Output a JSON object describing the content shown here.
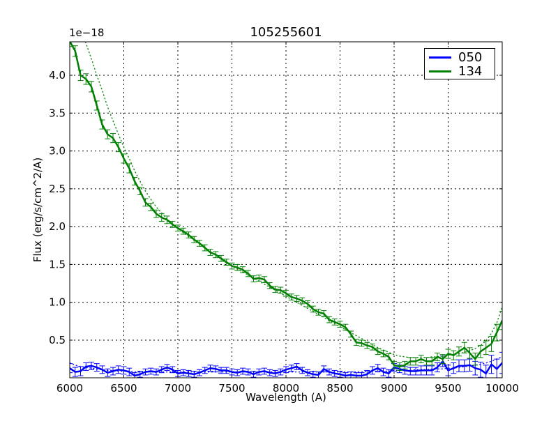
{
  "chart_data": {
    "type": "line",
    "title": "105255601",
    "xlabel": "Wavelength (A)",
    "ylabel": "Flux (erg/s/cm^2/A)",
    "y_scale_label": "1e−18",
    "xlim": [
      6000,
      10000
    ],
    "ylim": [
      0.0,
      4.45
    ],
    "x_ticks": [
      6000,
      6500,
      7000,
      7500,
      8000,
      8500,
      9000,
      9500,
      10000
    ],
    "y_ticks": [
      0.5,
      1.0,
      1.5,
      2.0,
      2.5,
      3.0,
      3.5,
      4.0
    ],
    "y_tick_labels": [
      "0.5",
      "1.0",
      "1.5",
      "2.0",
      "2.5",
      "3.0",
      "3.5",
      "4.0"
    ],
    "grid": true,
    "legend_position": "upper right",
    "x_start": 6000,
    "x_step": 50,
    "series": [
      {
        "name": "050",
        "color": "#0000ff",
        "values": [
          0.13,
          0.08,
          0.09,
          0.15,
          0.16,
          0.14,
          0.11,
          0.07,
          0.09,
          0.11,
          0.1,
          0.08,
          0.03,
          0.05,
          0.08,
          0.09,
          0.08,
          0.11,
          0.14,
          0.11,
          0.06,
          0.07,
          0.06,
          0.05,
          0.07,
          0.1,
          0.13,
          0.12,
          0.1,
          0.1,
          0.08,
          0.07,
          0.09,
          0.08,
          0.05,
          0.08,
          0.09,
          0.07,
          0.06,
          0.08,
          0.11,
          0.13,
          0.15,
          0.1,
          0.07,
          0.05,
          0.04,
          0.12,
          0.08,
          0.06,
          0.05,
          0.03,
          0.04,
          0.03,
          0.03,
          0.05,
          0.1,
          0.13,
          0.08,
          0.06,
          0.14,
          0.12,
          0.1,
          0.09,
          0.09,
          0.1,
          0.1,
          0.1,
          0.14,
          0.22,
          0.1,
          0.13,
          0.16,
          0.16,
          0.17,
          0.13,
          0.11,
          0.06,
          0.18,
          0.12,
          0.2
        ],
        "errors": [
          0.06,
          0.06,
          0.06,
          0.05,
          0.05,
          0.05,
          0.05,
          0.05,
          0.05,
          0.05,
          0.05,
          0.05,
          0.04,
          0.04,
          0.04,
          0.04,
          0.04,
          0.04,
          0.04,
          0.04,
          0.04,
          0.04,
          0.04,
          0.04,
          0.04,
          0.04,
          0.04,
          0.04,
          0.04,
          0.04,
          0.04,
          0.04,
          0.04,
          0.04,
          0.04,
          0.04,
          0.04,
          0.04,
          0.04,
          0.04,
          0.04,
          0.04,
          0.04,
          0.04,
          0.04,
          0.04,
          0.04,
          0.04,
          0.04,
          0.04,
          0.04,
          0.04,
          0.04,
          0.04,
          0.04,
          0.05,
          0.05,
          0.05,
          0.05,
          0.05,
          0.05,
          0.05,
          0.05,
          0.05,
          0.05,
          0.06,
          0.06,
          0.06,
          0.06,
          0.07,
          0.07,
          0.07,
          0.08,
          0.08,
          0.08,
          0.09,
          0.1,
          0.11,
          0.12,
          0.13,
          0.14
        ],
        "model": [
          0.2,
          0.17,
          0.15,
          0.14,
          0.13,
          0.12,
          0.11,
          0.1,
          0.1,
          0.09,
          0.09,
          0.09,
          0.08,
          0.08,
          0.08,
          0.08,
          0.08,
          0.08,
          0.08,
          0.08,
          0.08,
          0.08,
          0.08,
          0.08,
          0.08,
          0.08,
          0.08,
          0.08,
          0.08,
          0.08,
          0.08,
          0.08,
          0.08,
          0.08,
          0.08,
          0.08,
          0.08,
          0.08,
          0.08,
          0.08,
          0.08,
          0.08,
          0.08,
          0.08,
          0.08,
          0.08,
          0.08,
          0.08,
          0.08,
          0.08,
          0.08,
          0.08,
          0.08,
          0.08,
          0.08,
          0.09,
          0.09,
          0.09,
          0.09,
          0.09,
          0.1,
          0.1,
          0.1,
          0.1,
          0.11,
          0.11,
          0.11,
          0.12,
          0.12,
          0.12,
          0.13,
          0.13,
          0.14,
          0.15,
          0.16,
          0.17,
          0.18,
          0.2,
          0.22,
          0.25,
          0.28
        ]
      },
      {
        "name": "134",
        "color": "#008000",
        "values": [
          4.45,
          4.32,
          4.0,
          3.95,
          3.85,
          3.6,
          3.35,
          3.22,
          3.17,
          3.05,
          2.9,
          2.77,
          2.6,
          2.47,
          2.32,
          2.26,
          2.17,
          2.12,
          2.09,
          2.03,
          1.98,
          1.94,
          1.89,
          1.83,
          1.78,
          1.72,
          1.66,
          1.63,
          1.58,
          1.53,
          1.48,
          1.46,
          1.43,
          1.38,
          1.31,
          1.32,
          1.3,
          1.22,
          1.17,
          1.16,
          1.12,
          1.07,
          1.05,
          1.02,
          0.98,
          0.91,
          0.87,
          0.85,
          0.77,
          0.74,
          0.71,
          0.67,
          0.58,
          0.47,
          0.46,
          0.43,
          0.41,
          0.35,
          0.32,
          0.28,
          0.17,
          0.15,
          0.17,
          0.22,
          0.22,
          0.25,
          0.22,
          0.22,
          0.28,
          0.25,
          0.32,
          0.3,
          0.35,
          0.4,
          0.33,
          0.25,
          0.35,
          0.4,
          0.45,
          0.6,
          0.76
        ],
        "errors": [
          0.07,
          0.07,
          0.07,
          0.07,
          0.07,
          0.06,
          0.06,
          0.06,
          0.06,
          0.06,
          0.06,
          0.06,
          0.05,
          0.05,
          0.05,
          0.05,
          0.05,
          0.05,
          0.05,
          0.04,
          0.04,
          0.04,
          0.04,
          0.04,
          0.04,
          0.04,
          0.04,
          0.04,
          0.04,
          0.04,
          0.04,
          0.04,
          0.04,
          0.04,
          0.04,
          0.04,
          0.04,
          0.04,
          0.04,
          0.04,
          0.04,
          0.04,
          0.04,
          0.04,
          0.04,
          0.04,
          0.04,
          0.04,
          0.04,
          0.04,
          0.04,
          0.04,
          0.04,
          0.04,
          0.04,
          0.04,
          0.04,
          0.04,
          0.04,
          0.04,
          0.05,
          0.05,
          0.05,
          0.05,
          0.05,
          0.05,
          0.05,
          0.05,
          0.05,
          0.06,
          0.06,
          0.06,
          0.06,
          0.07,
          0.07,
          0.08,
          0.08,
          0.09,
          0.1,
          0.11,
          0.12
        ],
        "model": [
          4.95,
          4.8,
          4.62,
          4.42,
          4.22,
          4.0,
          3.8,
          3.58,
          3.4,
          3.22,
          3.05,
          2.9,
          2.74,
          2.6,
          2.47,
          2.36,
          2.26,
          2.18,
          2.1,
          2.04,
          1.98,
          1.92,
          1.87,
          1.82,
          1.77,
          1.72,
          1.67,
          1.62,
          1.57,
          1.52,
          1.48,
          1.44,
          1.4,
          1.36,
          1.32,
          1.28,
          1.24,
          1.2,
          1.16,
          1.12,
          1.08,
          1.04,
          1.0,
          0.96,
          0.92,
          0.88,
          0.84,
          0.8,
          0.76,
          0.72,
          0.68,
          0.64,
          0.6,
          0.56,
          0.52,
          0.48,
          0.44,
          0.4,
          0.37,
          0.34,
          0.31,
          0.29,
          0.28,
          0.27,
          0.27,
          0.27,
          0.27,
          0.28,
          0.28,
          0.29,
          0.3,
          0.31,
          0.32,
          0.34,
          0.36,
          0.39,
          0.43,
          0.49,
          0.59,
          0.73,
          0.94
        ]
      }
    ]
  },
  "legend": {
    "items": [
      {
        "label": "050",
        "color": "#0000ff"
      },
      {
        "label": "134",
        "color": "#008000"
      }
    ]
  }
}
